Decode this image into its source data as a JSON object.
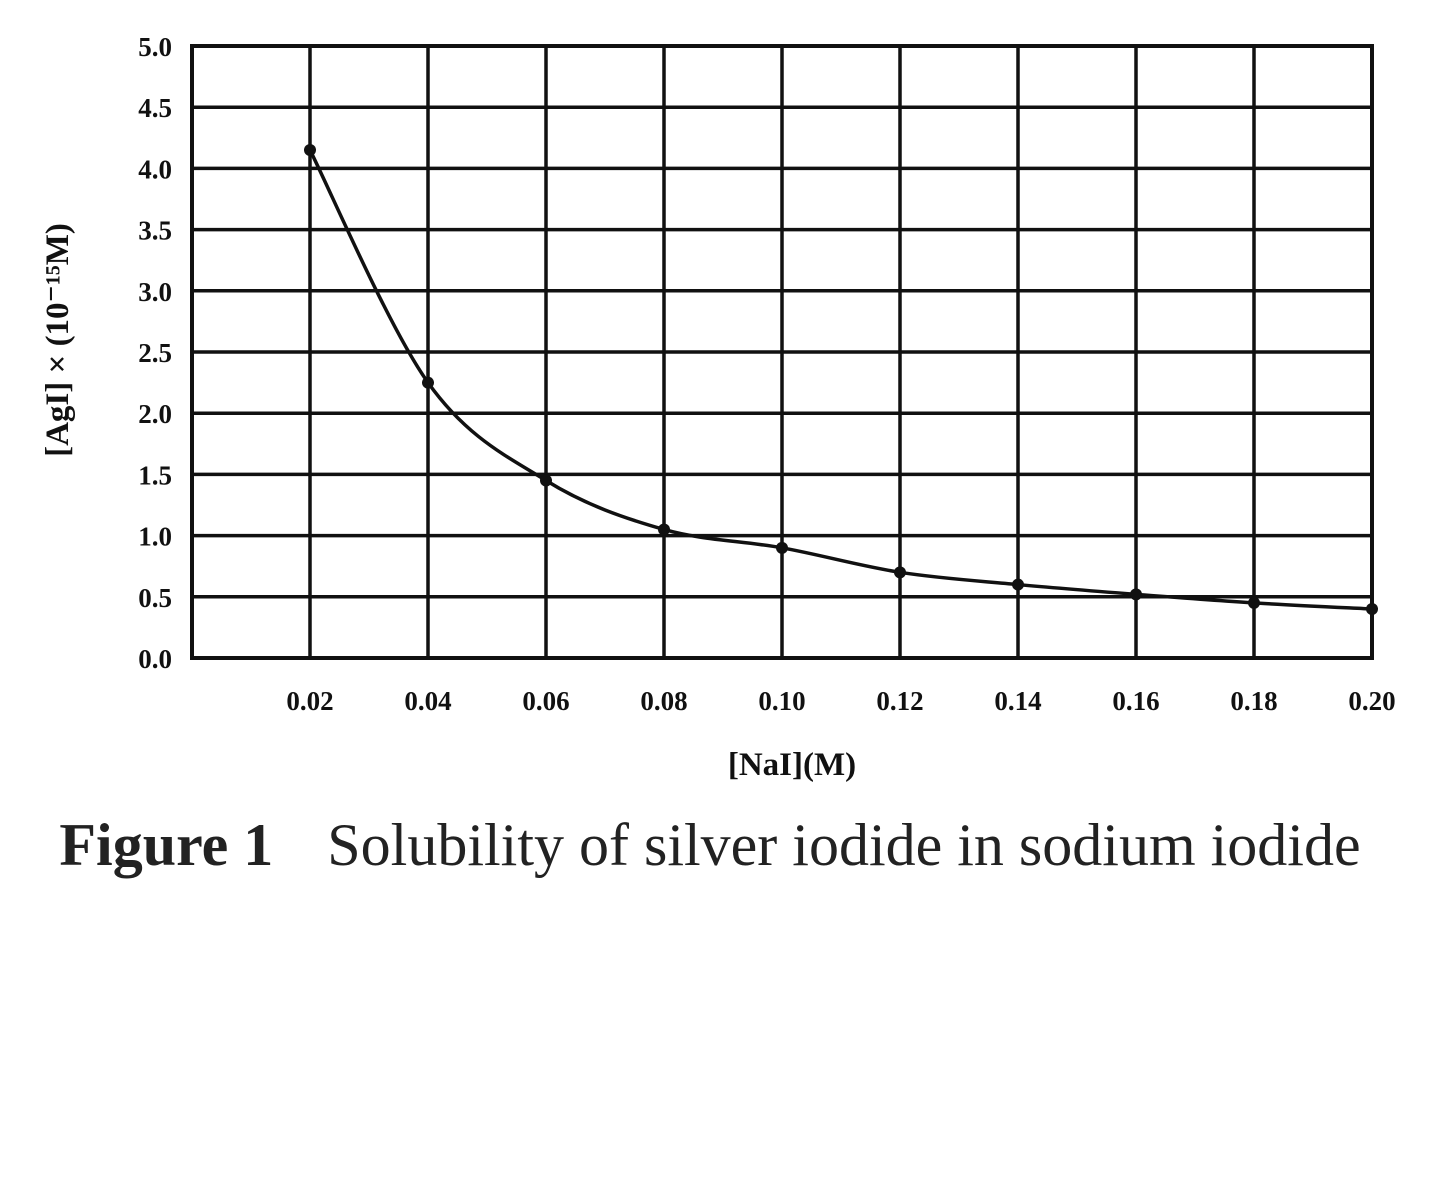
{
  "chart_data": {
    "type": "line",
    "x": [
      0.02,
      0.04,
      0.06,
      0.08,
      0.1,
      0.12,
      0.14,
      0.16,
      0.18,
      0.2
    ],
    "series": [
      {
        "values": [
          4.15,
          2.25,
          1.45,
          1.05,
          0.9,
          0.7,
          0.6,
          0.52,
          0.45,
          0.4
        ]
      }
    ],
    "xlabel": "[NaI](M)",
    "ylabel": "[AgI] × (10⁻¹⁵M)",
    "xlim": [
      0.0,
      0.2
    ],
    "ylim": [
      0.0,
      5.0
    ],
    "xticks": [
      "0.02",
      "0.04",
      "0.06",
      "0.08",
      "0.10",
      "0.12",
      "0.14",
      "0.16",
      "0.18",
      "0.20"
    ],
    "yticks": [
      "0.0",
      "0.5",
      "1.0",
      "1.5",
      "2.0",
      "2.5",
      "3.0",
      "3.5",
      "4.0",
      "4.5",
      "5.0"
    ],
    "grid": true,
    "line_color": "#111111"
  },
  "caption": {
    "label": "Figure 1",
    "text": "Solubility of silver iodide in sodium iodide"
  }
}
